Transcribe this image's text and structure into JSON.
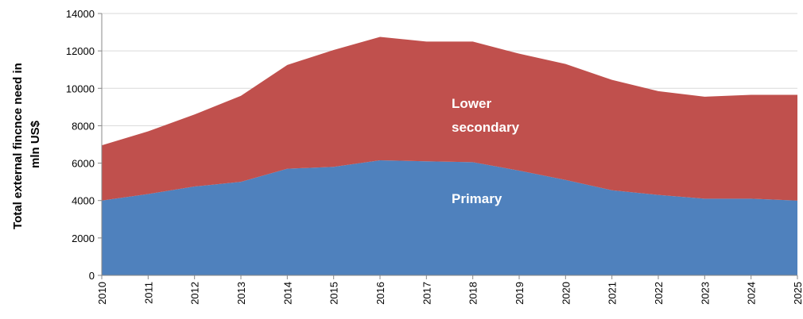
{
  "chart_data": {
    "type": "stacked-area",
    "ylabel": "Total external fincnce need in mln US$",
    "x": [
      2010,
      2011,
      2012,
      2013,
      2014,
      2015,
      2016,
      2017,
      2018,
      2019,
      2020,
      2021,
      2022,
      2023,
      2024,
      2025
    ],
    "xlim": [
      2010,
      2025
    ],
    "xticks": [
      2010,
      2011,
      2012,
      2013,
      2014,
      2015,
      2016,
      2017,
      2018,
      2019,
      2020,
      2021,
      2022,
      2023,
      2024,
      2025
    ],
    "ylim": [
      0,
      14000
    ],
    "yticks": [
      0,
      2000,
      4000,
      6000,
      8000,
      10000,
      12000,
      14000
    ],
    "grid": true,
    "series": [
      {
        "name": "Primary",
        "color": "#4f81bd",
        "values": [
          4000,
          4350,
          4750,
          5000,
          5700,
          5800,
          6150,
          6100,
          6050,
          5600,
          5100,
          4550,
          4300,
          4100,
          4100,
          4000
        ]
      },
      {
        "name": "Lower secondary",
        "color": "#c0504d",
        "values": [
          2950,
          3350,
          3850,
          4600,
          5550,
          6250,
          6600,
          6400,
          6450,
          6250,
          6200,
          5900,
          5550,
          5450,
          5550,
          5650
        ]
      }
    ]
  }
}
